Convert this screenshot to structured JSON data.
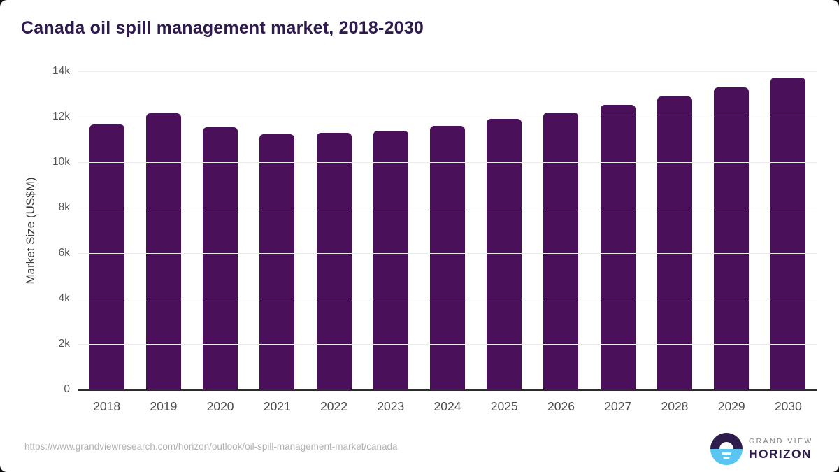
{
  "title": "Canada oil spill management market, 2018-2030",
  "source_url": "https://www.grandviewresearch.com/horizon/outlook/oil-spill-management-market/canada",
  "logo": {
    "line1": "GRAND VIEW",
    "line2": "HORIZON"
  },
  "colors": {
    "bar": "#4A115A",
    "title_text": "#2F1A4E",
    "axis_label_text": "#4C4C4C",
    "gridline": "#EBEBEB",
    "axis_line": "#2B2B2B",
    "url_text": "#B1B1B1",
    "logo_dark": "#2E1C4D",
    "logo_blue": "#59C5F0"
  },
  "chart_data": {
    "type": "bar",
    "title": "Canada oil spill management market, 2018-2030",
    "xlabel": "",
    "ylabel": "Market Size (US$M)",
    "categories": [
      "2018",
      "2019",
      "2020",
      "2021",
      "2022",
      "2023",
      "2024",
      "2025",
      "2026",
      "2027",
      "2028",
      "2029",
      "2030"
    ],
    "values": [
      11650,
      12150,
      11530,
      11220,
      11280,
      11400,
      11600,
      11900,
      12200,
      12530,
      12880,
      13300,
      13720
    ],
    "ylim": [
      0,
      14000
    ],
    "yticks": [
      0,
      2000,
      4000,
      6000,
      8000,
      10000,
      12000,
      14000
    ],
    "ytick_labels": [
      "0",
      "2k",
      "4k",
      "6k",
      "8k",
      "10k",
      "12k",
      "14k"
    ],
    "grid": "horizontal",
    "legend": "none",
    "bar_color": "#4A115A"
  }
}
